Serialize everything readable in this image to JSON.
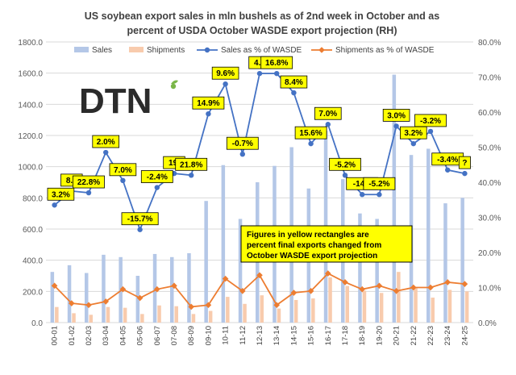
{
  "chart_data": {
    "type": "bar",
    "title_line1": "US soybean export sales in mln bushels as of 2nd week in October  and as",
    "title_line2": "percent of USDA October WASDE export projection (RH)",
    "categories": [
      "00-01",
      "01-02",
      "02-03",
      "03-04",
      "04-05",
      "05-06",
      "06-07",
      "07-08",
      "08-09",
      "09-10",
      "10-11",
      "11-12",
      "12-13",
      "13-14",
      "14-15",
      "15-16",
      "16-17",
      "17-18",
      "18-19",
      "19-20",
      "20-21",
      "21-22",
      "22-23",
      "23-24",
      "24-25"
    ],
    "left_axis": {
      "min": 0,
      "max": 1800,
      "step": 200,
      "tick_labels": [
        "0.0",
        "200.0",
        "400.0",
        "600.0",
        "800.0",
        "1000.0",
        "1200.0",
        "1400.0",
        "1600.0",
        "1800.0"
      ]
    },
    "right_axis": {
      "min": 0,
      "max": 80,
      "step": 10,
      "tick_labels": [
        "0.0%",
        "10.0%",
        "20.0%",
        "30.0%",
        "40.0%",
        "50.0%",
        "60.0%",
        "70.0%",
        "80.0%"
      ]
    },
    "series": [
      {
        "name": "Sales",
        "kind": "bar",
        "axis": "left",
        "color": "#b4c7e7",
        "values": [
          325,
          368,
          318,
          435,
          420,
          300,
          440,
          420,
          445,
          780,
          1010,
          665,
          900,
          1005,
          1125,
          860,
          1230,
          920,
          700,
          665,
          1590,
          1075,
          1115,
          765,
          800
        ]
      },
      {
        "name": "Shipments",
        "kind": "bar",
        "axis": "left",
        "color": "#f8cbad",
        "values": [
          100,
          60,
          50,
          100,
          95,
          55,
          110,
          105,
          55,
          75,
          165,
          120,
          175,
          90,
          145,
          155,
          290,
          235,
          205,
          190,
          325,
          225,
          160,
          210,
          200
        ]
      },
      {
        "name": "Sales as % of WASDE",
        "kind": "line",
        "axis": "right",
        "color": "#4472c4",
        "values": [
          33.5,
          37.5,
          37.0,
          48.5,
          40.5,
          26.5,
          38.5,
          42.5,
          42.0,
          59.5,
          68.0,
          48.0,
          71.0,
          71.0,
          65.5,
          51.0,
          56.5,
          42.0,
          36.5,
          36.5,
          56.0,
          51.0,
          54.5,
          43.5,
          42.5
        ]
      },
      {
        "name": "Shipments as % of WASDE",
        "kind": "line",
        "axis": "right",
        "color": "#ed7d31",
        "values": [
          10.5,
          5.5,
          5.0,
          6.0,
          9.5,
          7.0,
          9.5,
          10.5,
          4.5,
          5.0,
          12.5,
          9.0,
          13.5,
          5.0,
          8.5,
          9.0,
          14.0,
          11.5,
          9.5,
          10.5,
          9.0,
          10.0,
          10.0,
          11.5,
          11.0
        ]
      }
    ],
    "annotations": [
      {
        "label": "3.2%",
        "index": 0
      },
      {
        "label": "8.5",
        "index": 1
      },
      {
        "label": "22.8%",
        "index": 2
      },
      {
        "label": "2.0%",
        "index": 3
      },
      {
        "label": "7.0%",
        "index": 4
      },
      {
        "label": "-15.7%",
        "index": 5
      },
      {
        "label": "-2.4%",
        "index": 6
      },
      {
        "label": "19.",
        "index": 7
      },
      {
        "label": "21.8%",
        "index": 8
      },
      {
        "label": "14.9%",
        "index": 9
      },
      {
        "label": "9.6%",
        "index": 10
      },
      {
        "label": "-0.7%",
        "index": 11
      },
      {
        "label": "4.1",
        "index": 12
      },
      {
        "label": "16.8%",
        "index": 13
      },
      {
        "label": "8.4%",
        "index": 14
      },
      {
        "label": "15.6%",
        "index": 15
      },
      {
        "label": "7.0%",
        "index": 16
      },
      {
        "label": "-5.2%",
        "index": 17
      },
      {
        "label": "-14.9",
        "index": 18
      },
      {
        "label": "-5.2%",
        "index": 19
      },
      {
        "label": "3.0%",
        "index": 20
      },
      {
        "label": "3.2%",
        "index": 21
      },
      {
        "label": "-3.2%",
        "index": 22
      },
      {
        "label": "-3.4%",
        "index": 23
      },
      {
        "label": "?",
        "index": 24
      }
    ],
    "note_lines": [
      "Figures in yellow rectangles are",
      "percent final exports changed from",
      "October WASDE export projection"
    ],
    "logo_text": "DTN",
    "legend_position": "top",
    "grid": true,
    "colors": {
      "annotation_fill": "#ffff00",
      "annotation_border": "#000000",
      "note_text": "#000000",
      "logo": "#2b2b2b",
      "logo_accent": "#7ab648"
    }
  }
}
